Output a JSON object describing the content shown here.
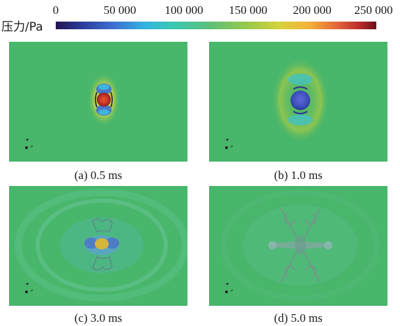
{
  "colorbar": {
    "label": "压力/Pa",
    "ticks": [
      "0",
      "50 000",
      "100 000",
      "150 000",
      "200 000",
      "250 000"
    ],
    "range": [
      0,
      250000
    ]
  },
  "panels": [
    {
      "caption": "(a) 0.5 ms"
    },
    {
      "caption": "(b) 1.0 ms"
    },
    {
      "caption": "(c) 3.0 ms"
    },
    {
      "caption": "(d) 5.0 ms"
    }
  ]
}
